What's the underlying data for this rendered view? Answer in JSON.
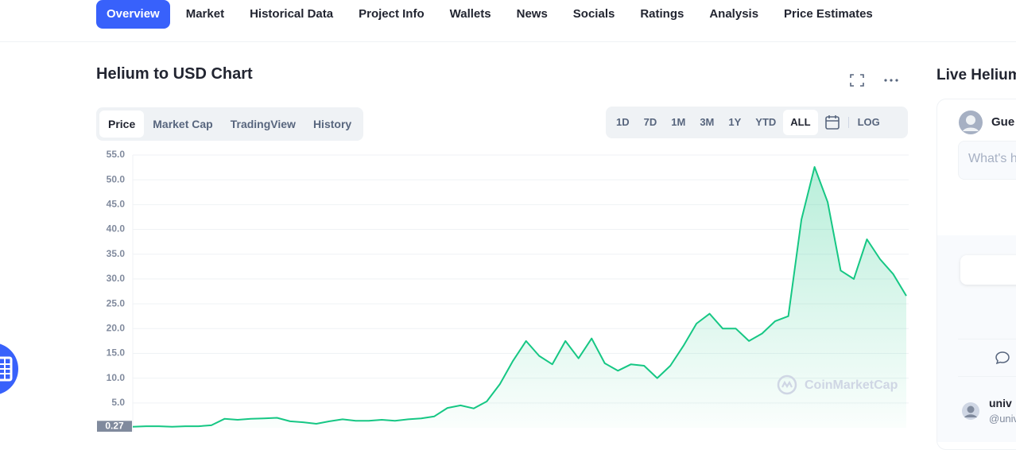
{
  "nav": [
    "Overview",
    "Market",
    "Historical Data",
    "Project Info",
    "Wallets",
    "News",
    "Socials",
    "Ratings",
    "Analysis",
    "Price Estimates"
  ],
  "chart_header": {
    "title": "Helium to USD Chart"
  },
  "chart_tabs": [
    "Price",
    "Market Cap",
    "TradingView",
    "History"
  ],
  "range_buttons": [
    "1D",
    "7D",
    "1M",
    "3M",
    "1Y",
    "YTD",
    "ALL"
  ],
  "log_button": "LOG",
  "watermark": "CoinMarketCap",
  "side_panel": {
    "title": "Live Helium",
    "user": "Gue",
    "input_placeholder": "What's h",
    "post_user": "univ",
    "post_handle": "@univ"
  },
  "chart_data": {
    "type": "line",
    "color": "#16c784",
    "grid": true,
    "ylim": [
      0,
      55
    ],
    "yticks": [
      {
        "value": 5,
        "label": "5.0"
      },
      {
        "value": 10,
        "label": "10.0"
      },
      {
        "value": 15,
        "label": "15.0"
      },
      {
        "value": 20,
        "label": "20.0"
      },
      {
        "value": 25,
        "label": "25.0"
      },
      {
        "value": 30,
        "label": "30.0"
      },
      {
        "value": 35,
        "label": "35.0"
      },
      {
        "value": 40,
        "label": "40.0"
      },
      {
        "value": 45,
        "label": "45.0"
      },
      {
        "value": 50,
        "label": "50.0"
      },
      {
        "value": 55,
        "label": "55.0"
      }
    ],
    "low_label": {
      "value": 0.27,
      "label": "0.27"
    },
    "values": [
      0.2,
      0.3,
      0.3,
      0.2,
      0.3,
      0.3,
      0.5,
      1.8,
      1.6,
      1.8,
      1.9,
      2.0,
      1.3,
      1.1,
      0.8,
      1.3,
      1.7,
      1.4,
      1.4,
      1.6,
      1.4,
      1.7,
      1.9,
      2.3,
      4.0,
      4.5,
      3.9,
      5.3,
      8.8,
      13.5,
      17.5,
      14.5,
      12.8,
      17.5,
      14.0,
      18.0,
      13.0,
      11.5,
      12.8,
      12.5,
      10.0,
      12.5,
      16.5,
      21.0,
      23.0,
      20.0,
      20.0,
      17.5,
      19.0,
      21.5,
      22.5,
      42.0,
      52.6,
      45.5,
      31.7,
      30.0,
      38.0,
      34.0,
      31.0,
      26.6
    ]
  }
}
